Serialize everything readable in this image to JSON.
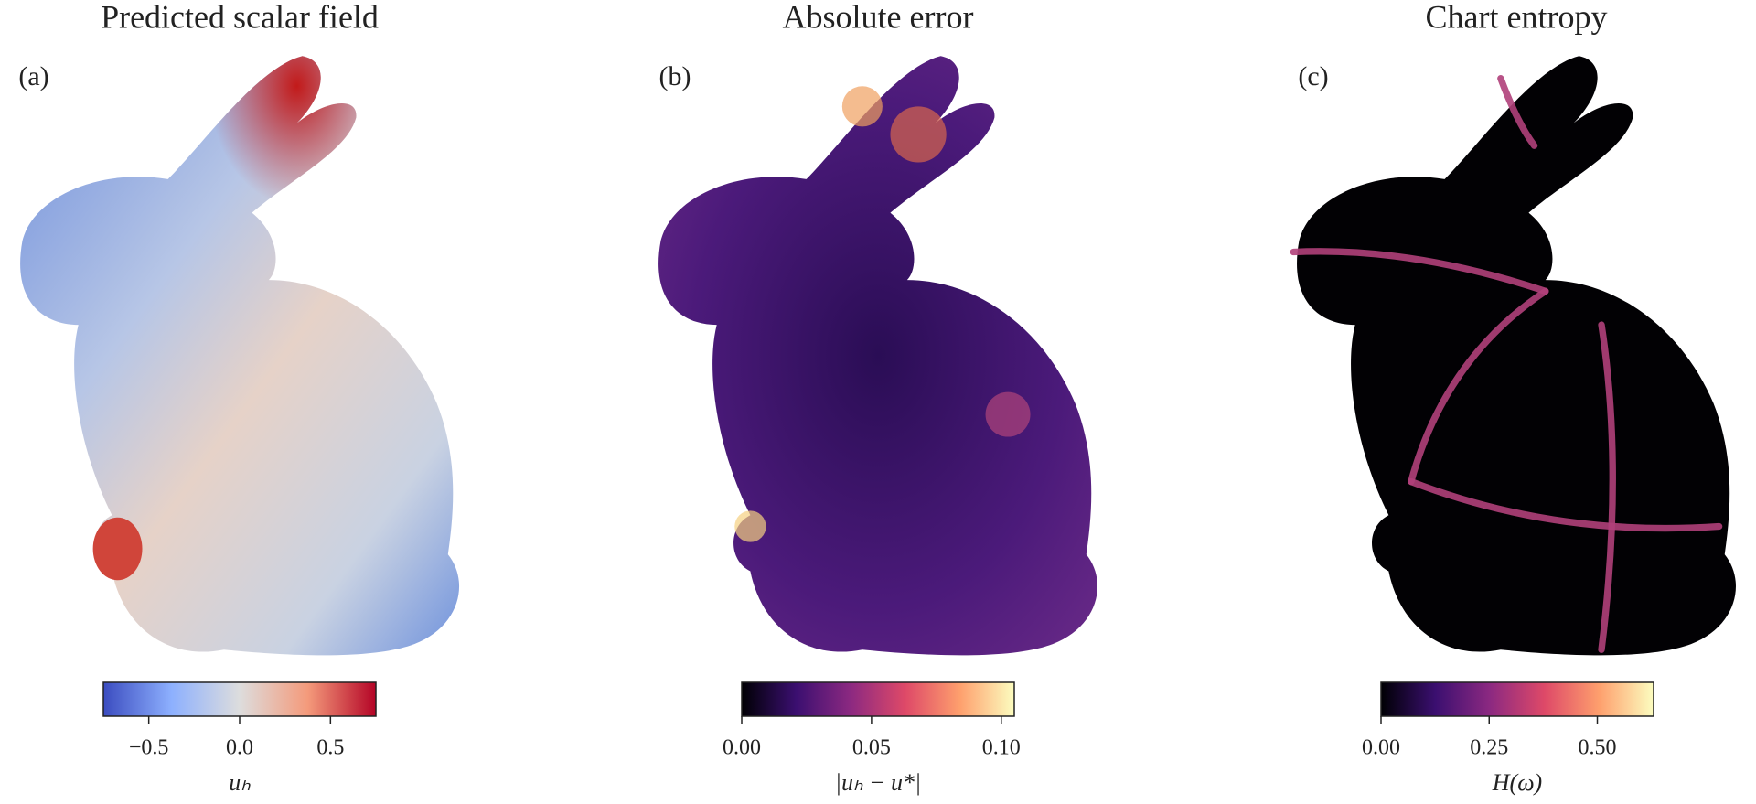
{
  "chart_data": [
    {
      "type": "colorbar",
      "title": "Predicted scalar field",
      "panel_label": "(a)",
      "label": "uₕ",
      "colors": [
        "#3b4cc0",
        "#8db0fe",
        "#dddddd",
        "#f49a7b",
        "#b40426"
      ],
      "xlim": [
        -0.75,
        0.75
      ],
      "xticks": [
        {
          "value": -0.5,
          "label": "−0.5"
        },
        {
          "value": 0,
          "label": "0.0"
        },
        {
          "value": 0.5,
          "label": "0.5"
        }
      ]
    },
    {
      "type": "colorbar",
      "title": "Absolute error",
      "panel_label": "(b)",
      "label": "|uₕ − u*|",
      "colors": [
        "#000004",
        "#3b0f70",
        "#8c2981",
        "#de4968",
        "#fe9f6d",
        "#fcfdbf"
      ],
      "xlim": [
        0,
        0.105
      ],
      "xticks": [
        {
          "value": 0,
          "label": "0.00"
        },
        {
          "value": 0.05,
          "label": "0.05"
        },
        {
          "value": 0.1,
          "label": "0.10"
        }
      ]
    },
    {
      "type": "colorbar",
      "title": "Chart entropy",
      "panel_label": "(c)",
      "label": "H(ω)",
      "colors": [
        "#000004",
        "#3b0f70",
        "#8c2981",
        "#de4968",
        "#fe9f6d",
        "#fcfdbf"
      ],
      "xlim": [
        0,
        0.63
      ],
      "xticks": [
        {
          "value": 0,
          "label": "0.00"
        },
        {
          "value": 0.25,
          "label": "0.25"
        },
        {
          "value": 0.5,
          "label": "0.50"
        }
      ]
    }
  ]
}
